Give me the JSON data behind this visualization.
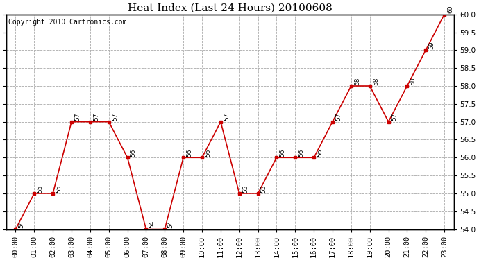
{
  "title": "Heat Index (Last 24 Hours) 20100608",
  "copyright": "Copyright 2010 Cartronics.com",
  "x_labels": [
    "00:00",
    "01:00",
    "02:00",
    "03:00",
    "04:00",
    "05:00",
    "06:00",
    "07:00",
    "08:00",
    "09:00",
    "10:00",
    "11:00",
    "12:00",
    "13:00",
    "14:00",
    "15:00",
    "16:00",
    "17:00",
    "18:00",
    "19:00",
    "20:00",
    "21:00",
    "22:00",
    "23:00"
  ],
  "y_values": [
    54,
    55,
    55,
    57,
    57,
    57,
    56,
    54,
    54,
    56,
    56,
    57,
    55,
    55,
    56,
    56,
    56,
    57,
    58,
    58,
    57,
    58,
    59,
    60
  ],
  "point_labels": [
    "54",
    "55",
    "55",
    "57",
    "57",
    "57",
    "56",
    "54",
    "54",
    "56",
    "56",
    "57",
    "55",
    "55",
    "56",
    "56",
    "56",
    "57",
    "58",
    "58",
    "57",
    "58",
    "59",
    "60"
  ],
  "line_color": "#cc0000",
  "marker_color": "#cc0000",
  "background_color": "#ffffff",
  "grid_color": "#aaaaaa",
  "ylim_min": 54.0,
  "ylim_max": 60.0,
  "ytick_step": 0.5,
  "title_fontsize": 11,
  "copyright_fontsize": 7,
  "label_fontsize": 6.5,
  "tick_fontsize": 7.5
}
